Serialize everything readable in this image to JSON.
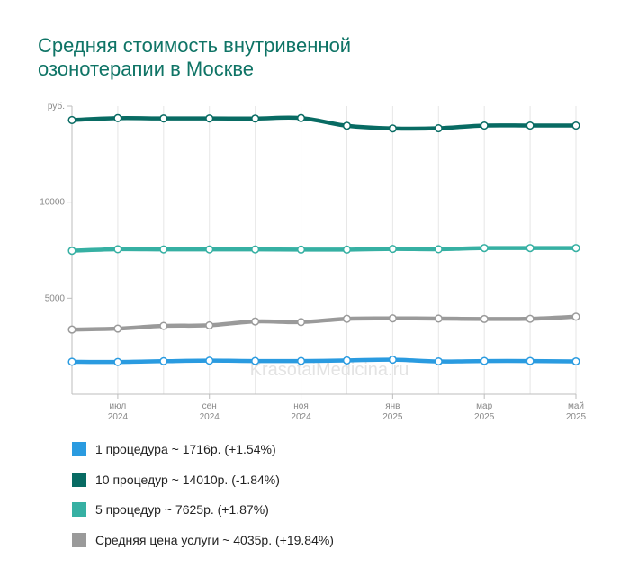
{
  "title": {
    "line1": "Средняя стоимость внутривенной",
    "line2": "озонотерапии в Москве"
  },
  "watermark": "KrasotaiMedicina.ru",
  "legend": [
    {
      "label": "1 процедура ~ 1716р. (+1.54%)",
      "color": "#2a9be0"
    },
    {
      "label": "10 процедур ~ 14010р. (-1.84%)",
      "color": "#086b63"
    },
    {
      "label": "5 процедур ~ 7625р. (+1.87%)",
      "color": "#36b0a3"
    },
    {
      "label": "Средняя цена услуги ~ 4035р. (+19.84%)",
      "color": "#9a9a9a"
    }
  ],
  "chart_data": {
    "type": "line",
    "title": "Средняя стоимость внутривенной озонотерапии в Москве",
    "x": [
      "2024-06",
      "2024-07",
      "2024-08",
      "2024-09",
      "2024-10",
      "2024-11",
      "2024-12",
      "2025-01",
      "2025-02",
      "2025-03",
      "2025-04",
      "2025-05"
    ],
    "x_tick_labels": [
      {
        "month": "июл",
        "year": "2024",
        "index": 1
      },
      {
        "month": "сен",
        "year": "2024",
        "index": 3
      },
      {
        "month": "ноя",
        "year": "2024",
        "index": 5
      },
      {
        "month": "янв",
        "year": "2025",
        "index": 7
      },
      {
        "month": "мар",
        "year": "2025",
        "index": 9
      },
      {
        "month": "май",
        "year": "2025",
        "index": 11
      }
    ],
    "y_tick_labels": [
      {
        "value": 5000,
        "label": "5000"
      },
      {
        "value": 10000,
        "label": "10000"
      },
      {
        "value": 15000,
        "label": "руб."
      }
    ],
    "ylim": [
      0,
      15000
    ],
    "grid": "vertical",
    "legend_position": "bottom",
    "series": [
      {
        "name": "10 процедур",
        "color": "#086b63",
        "values": [
          14275,
          14375,
          14360,
          14360,
          14355,
          14380,
          13980,
          13840,
          13850,
          13990,
          13990,
          13990
        ]
      },
      {
        "name": "5 процедур",
        "color": "#36b0a3",
        "values": [
          7470,
          7550,
          7540,
          7540,
          7540,
          7530,
          7530,
          7565,
          7550,
          7610,
          7610,
          7610
        ]
      },
      {
        "name": "Средняя цена услуги",
        "color": "#9a9a9a",
        "values": [
          3370,
          3420,
          3560,
          3590,
          3790,
          3760,
          3930,
          3950,
          3940,
          3920,
          3930,
          4040
        ]
      },
      {
        "name": "1 процедура",
        "color": "#2a9be0",
        "values": [
          1690,
          1680,
          1720,
          1750,
          1730,
          1730,
          1760,
          1800,
          1710,
          1730,
          1730,
          1710
        ]
      }
    ]
  }
}
